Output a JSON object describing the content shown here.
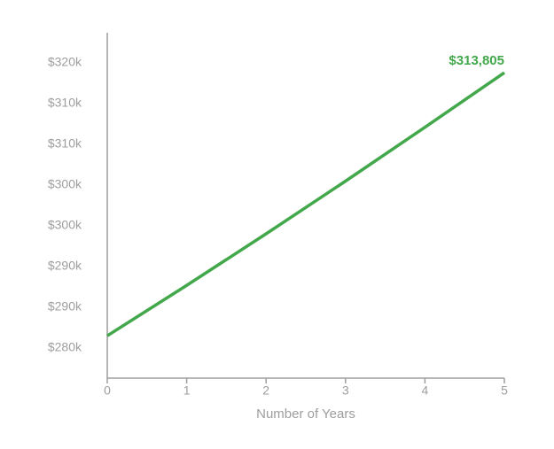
{
  "chart_data": {
    "type": "line",
    "x_label": "Number of Years",
    "x": [
      0,
      1,
      2,
      3,
      4,
      5
    ],
    "values": [
      281500,
      287690,
      294020,
      300490,
      307100,
      313805
    ],
    "value_labels": [
      null,
      null,
      null,
      null,
      null,
      "$313,805"
    ],
    "color": "#43a84b",
    "xlim": [
      0,
      5
    ],
    "xticks": [
      0,
      1,
      2,
      3,
      4,
      5
    ],
    "ylim": [
      276300,
      318700
    ],
    "yticks": [
      {
        "value": 280000,
        "label": "$280k"
      },
      {
        "value": 285000,
        "label": "$290k"
      },
      {
        "value": 290000,
        "label": "$290k"
      },
      {
        "value": 295000,
        "label": "$300k"
      },
      {
        "value": 300000,
        "label": "$300k"
      },
      {
        "value": 305000,
        "label": "$310k"
      },
      {
        "value": 310000,
        "label": "$310k"
      },
      {
        "value": 315000,
        "label": "$320k"
      }
    ],
    "grid": false
  }
}
